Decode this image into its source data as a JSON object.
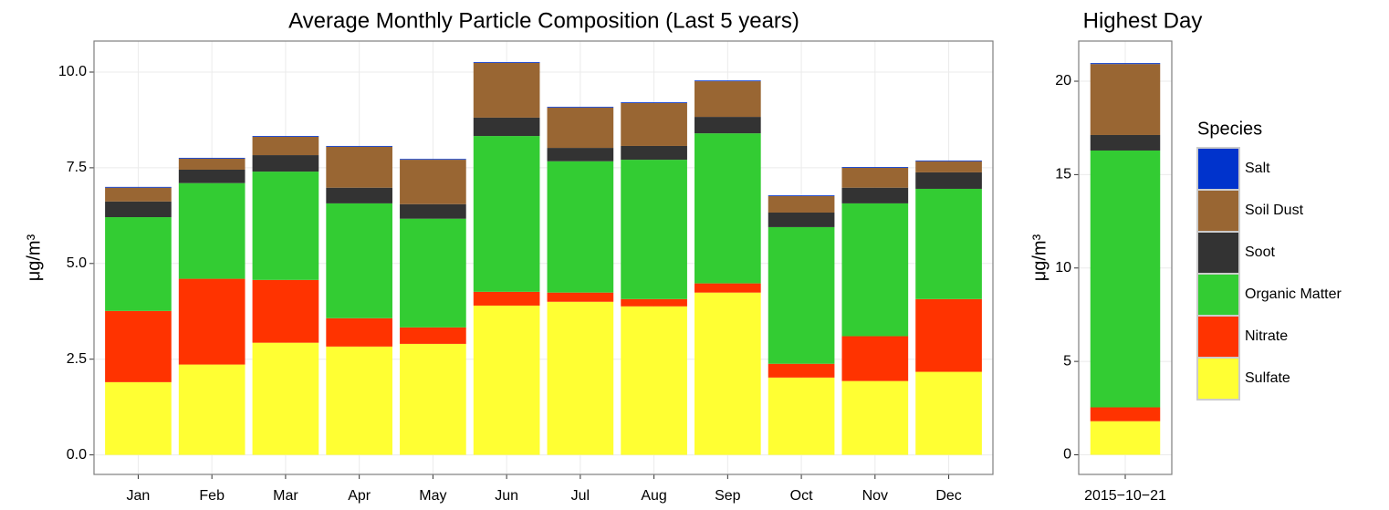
{
  "chart_data": [
    {
      "type": "stacked-bar",
      "title": "Average Monthly Particle Composition (Last 5 years)",
      "y_label": "μg/m³",
      "categories": [
        "Jan",
        "Feb",
        "Mar",
        "Apr",
        "May",
        "Jun",
        "Jul",
        "Aug",
        "Sep",
        "Oct",
        "Nov",
        "Dec"
      ],
      "series": [
        {
          "name": "Sulfate",
          "color": "#ffff33",
          "values": [
            1.9,
            2.36,
            2.93,
            2.83,
            2.9,
            3.9,
            4.0,
            3.88,
            4.24,
            2.02,
            1.93,
            2.17
          ]
        },
        {
          "name": "Nitrate",
          "color": "#ff3300",
          "values": [
            1.86,
            2.24,
            1.64,
            0.74,
            0.43,
            0.36,
            0.24,
            0.19,
            0.24,
            0.36,
            1.17,
            1.9
          ]
        },
        {
          "name": "Organic Matter",
          "color": "#33cc33",
          "values": [
            2.45,
            2.5,
            2.83,
            3.0,
            2.84,
            4.07,
            3.43,
            3.64,
            3.92,
            3.57,
            3.47,
            2.88
          ]
        },
        {
          "name": "Soot",
          "color": "#333333",
          "values": [
            0.41,
            0.35,
            0.43,
            0.41,
            0.38,
            0.48,
            0.35,
            0.36,
            0.43,
            0.38,
            0.41,
            0.43
          ]
        },
        {
          "name": "Soil Dust",
          "color": "#996633",
          "values": [
            0.36,
            0.29,
            0.48,
            1.07,
            1.16,
            1.43,
            1.05,
            1.12,
            0.93,
            0.43,
            0.52,
            0.29
          ]
        },
        {
          "name": "Salt",
          "color": "#0033cc",
          "values": [
            0.02,
            0.02,
            0.02,
            0.02,
            0.02,
            0.02,
            0.02,
            0.02,
            0.02,
            0.02,
            0.02,
            0.02
          ]
        }
      ],
      "ylim": [
        -0.51,
        10.81
      ],
      "yticks": [
        {
          "value": 0,
          "label": "0.0"
        },
        2.5,
        {
          "value": 5,
          "label": "5.0"
        },
        7.5,
        {
          "value": 10,
          "label": "10.0"
        }
      ],
      "grid": true
    },
    {
      "type": "stacked-bar",
      "title": "Highest Day",
      "y_label": "μg/m³",
      "legend_title": "Species",
      "legend": "right",
      "categories": [
        "2015−10−21"
      ],
      "series": [
        {
          "name": "Sulfate",
          "color": "#ffff33",
          "values": [
            1.8
          ]
        },
        {
          "name": "Nitrate",
          "color": "#ff3300",
          "values": [
            0.74
          ]
        },
        {
          "name": "Organic Matter",
          "color": "#33cc33",
          "values": [
            13.75
          ]
        },
        {
          "name": "Soot",
          "color": "#333333",
          "values": [
            0.83
          ]
        },
        {
          "name": "Soil Dust",
          "color": "#996633",
          "values": [
            3.8
          ]
        },
        {
          "name": "Salt",
          "color": "#0033cc",
          "values": [
            0.05
          ]
        }
      ],
      "ylim": [
        -1.05,
        22.15
      ],
      "yticks": [
        0,
        5,
        10,
        15,
        20
      ],
      "grid": true
    }
  ]
}
